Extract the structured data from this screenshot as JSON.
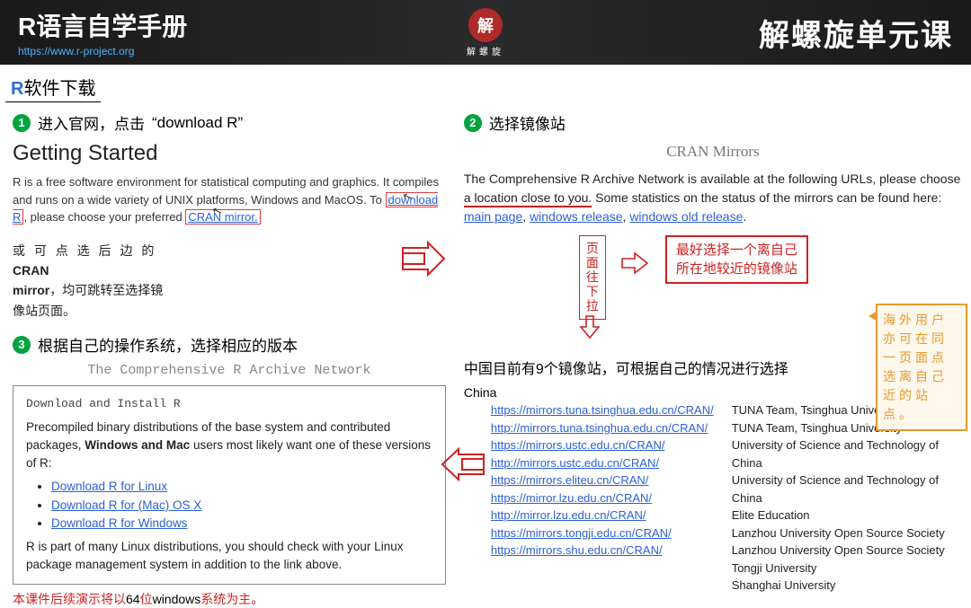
{
  "header": {
    "title_left": "R语言自学手册",
    "url": "https://www.r-project.org",
    "seal_char": "解",
    "seal_sub": "解螺旋",
    "title_right": "解螺旋单元课"
  },
  "subtitle": {
    "r": "R",
    "rest": "软件下载"
  },
  "colors": {
    "accent_green": "#00a33f",
    "link_blue": "#2b5fd9",
    "red": "#d02020",
    "orange": "#e69a2e"
  },
  "step1": {
    "num": "1",
    "label_pre": "进入官网，点击",
    "label_quote": "“download R”",
    "heading": "Getting Started",
    "p1_a": "R is a free software environment for statistical computing and graphics. It compiles and runs on a wide variety of UNIX platforms, Windows and MacOS. To ",
    "dl_link": "download R",
    "p1_b": ", please choose your preferred ",
    "mirror_link": "CRAN mirror.",
    "note": "或 可 点 选 后 边 的 CRAN mirror，均可跳转至选择镜像站页面。",
    "note_line1_pre": "或 可 点 选 后 边 的",
    "note_line1_bold": " CRAN",
    "note_line2_bold": "mirror",
    "note_line2_rest": "，均可跳转至选择镜",
    "note_line3": "像站页面。"
  },
  "step2": {
    "num": "2",
    "label": "选择镜像站",
    "heading": "CRAN Mirrors",
    "p_a": "The Comprehensive R Archive Network is available at the following URLs, please choose ",
    "p_red": "a location close to you.",
    "p_b": " Some statistics on the status of the mirrors can be found here: ",
    "link1": "main page",
    "link2": "windows release",
    "link3": "windows old release",
    "vbox": "页面往下拉",
    "tip1": "最好选择一个离自己",
    "tip2": "所在地较近的镜像站",
    "china_head": "中国目前有9个镜像站，可根据自己的情况进行选择",
    "china_label": "China",
    "mirrors": [
      {
        "url": "https://mirrors.tuna.tsinghua.edu.cn/CRAN/",
        "name": "TUNA Team, Tsinghua University"
      },
      {
        "url": "http://mirrors.tuna.tsinghua.edu.cn/CRAN/",
        "name": "TUNA Team, Tsinghua University"
      },
      {
        "url": "https://mirrors.ustc.edu.cn/CRAN/",
        "name": "University of Science and Technology of China"
      },
      {
        "url": "http://mirrors.ustc.edu.cn/CRAN/",
        "name": "University of Science and Technology of China"
      },
      {
        "url": "https://mirrors.eliteu.cn/CRAN/",
        "name": "Elite Education"
      },
      {
        "url": "https://mirror.lzu.edu.cn/CRAN/",
        "name": "Lanzhou University Open Source Society"
      },
      {
        "url": "http://mirror.lzu.edu.cn/CRAN/",
        "name": "Lanzhou University Open Source Society"
      },
      {
        "url": "https://mirrors.tongji.edu.cn/CRAN/",
        "name": "Tongji University"
      },
      {
        "url": "https://mirrors.shu.edu.cn/CRAN/",
        "name": "Shanghai University"
      }
    ]
  },
  "step3": {
    "num": "3",
    "label": "根据自己的操作系统，选择相应的版本",
    "heading": "The Comprehensive R Archive Network",
    "box_h": "Download and Install R",
    "box_p1a": "Precompiled binary distributions of the base system and contributed packages, ",
    "box_p1b": "Windows and Mac",
    "box_p1c": " users most likely want one of these versions of R:",
    "dl_links": [
      "Download R for Linux",
      "Download R for (Mac) OS X",
      "Download R for Windows"
    ],
    "box_p2": "R is part of many Linux distributions, you should check with your Linux package management system in addition to the link above."
  },
  "bottom_note": {
    "a": "本课件后续演示将以",
    "b": "64",
    "c": "位",
    "d": "windows",
    "e": "系统为主。"
  },
  "side_note": "海外用户亦可在同一页面点选离自己近的站点。"
}
